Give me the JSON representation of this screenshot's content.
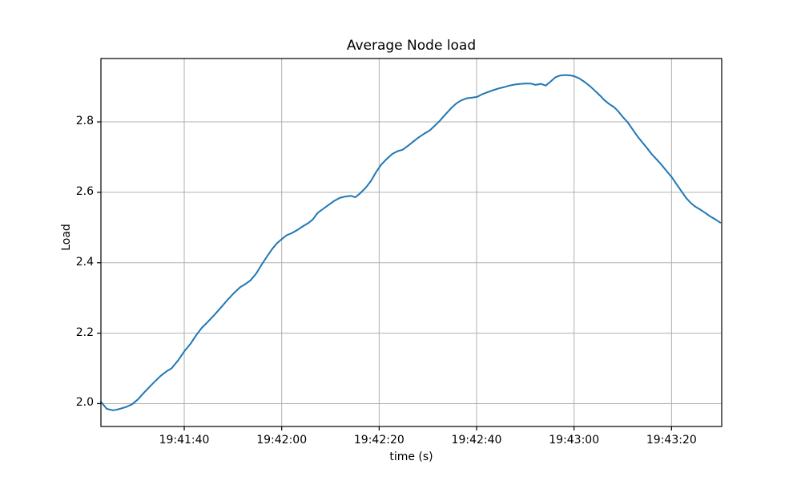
{
  "page": {
    "background": "#ffffff"
  },
  "chart_data": {
    "type": "line",
    "title": "Average Node load",
    "xlabel": "time (s)",
    "ylabel": "Load",
    "grid": true,
    "legend_position": "none",
    "line_color": "#1f77b4",
    "grid_color": "#b0b0b0",
    "axis_color": "#000000",
    "x_axis": {
      "kind": "clock-time",
      "domain_s": [
        82.9,
        210.3
      ],
      "ticks": [
        {
          "s": 100,
          "label": "19:41:40"
        },
        {
          "s": 120,
          "label": "19:42:00"
        },
        {
          "s": 140,
          "label": "19:42:20"
        },
        {
          "s": 160,
          "label": "19:42:40"
        },
        {
          "s": 180,
          "label": "19:43:00"
        },
        {
          "s": 200,
          "label": "19:43:20"
        }
      ]
    },
    "y_axis": {
      "domain": [
        1.935,
        2.98
      ],
      "ticks": [
        {
          "v": 2.0,
          "label": "2.0"
        },
        {
          "v": 2.2,
          "label": "2.2"
        },
        {
          "v": 2.4,
          "label": "2.4"
        },
        {
          "v": 2.6,
          "label": "2.6"
        },
        {
          "v": 2.8,
          "label": "2.8"
        }
      ]
    },
    "series": [
      {
        "name": "average-node-load",
        "color": "#1f77b4",
        "points_s_v": [
          [
            82.9,
            2.005
          ],
          [
            84.1,
            1.985
          ],
          [
            85.4,
            1.981
          ],
          [
            86.5,
            1.984
          ],
          [
            88.0,
            1.99
          ],
          [
            89.3,
            1.998
          ],
          [
            90.5,
            2.012
          ],
          [
            91.8,
            2.032
          ],
          [
            93.4,
            2.055
          ],
          [
            95.1,
            2.078
          ],
          [
            96.4,
            2.092
          ],
          [
            97.4,
            2.1
          ],
          [
            98.7,
            2.122
          ],
          [
            100.0,
            2.148
          ],
          [
            101.3,
            2.17
          ],
          [
            102.5,
            2.195
          ],
          [
            103.6,
            2.215
          ],
          [
            104.9,
            2.233
          ],
          [
            106.2,
            2.252
          ],
          [
            107.6,
            2.274
          ],
          [
            108.9,
            2.295
          ],
          [
            110.2,
            2.314
          ],
          [
            111.5,
            2.331
          ],
          [
            112.6,
            2.34
          ],
          [
            113.6,
            2.35
          ],
          [
            114.8,
            2.37
          ],
          [
            115.9,
            2.395
          ],
          [
            117.1,
            2.42
          ],
          [
            118.1,
            2.44
          ],
          [
            119.0,
            2.455
          ],
          [
            120.0,
            2.467
          ],
          [
            121.0,
            2.478
          ],
          [
            122.2,
            2.485
          ],
          [
            123.2,
            2.493
          ],
          [
            124.3,
            2.503
          ],
          [
            125.5,
            2.513
          ],
          [
            126.4,
            2.523
          ],
          [
            127.4,
            2.542
          ],
          [
            128.4,
            2.552
          ],
          [
            129.6,
            2.564
          ],
          [
            130.7,
            2.575
          ],
          [
            131.9,
            2.584
          ],
          [
            133.0,
            2.588
          ],
          [
            134.2,
            2.59
          ],
          [
            135.1,
            2.586
          ],
          [
            136.1,
            2.597
          ],
          [
            137.3,
            2.614
          ],
          [
            138.3,
            2.632
          ],
          [
            139.4,
            2.658
          ],
          [
            140.4,
            2.678
          ],
          [
            141.5,
            2.694
          ],
          [
            142.7,
            2.709
          ],
          [
            143.8,
            2.717
          ],
          [
            144.8,
            2.721
          ],
          [
            146.0,
            2.733
          ],
          [
            147.1,
            2.745
          ],
          [
            148.1,
            2.756
          ],
          [
            149.3,
            2.767
          ],
          [
            150.4,
            2.776
          ],
          [
            151.4,
            2.789
          ],
          [
            152.5,
            2.804
          ],
          [
            153.5,
            2.82
          ],
          [
            154.7,
            2.838
          ],
          [
            155.8,
            2.852
          ],
          [
            156.8,
            2.861
          ],
          [
            158.0,
            2.867
          ],
          [
            159.1,
            2.869
          ],
          [
            160.1,
            2.871
          ],
          [
            161.2,
            2.879
          ],
          [
            162.4,
            2.885
          ],
          [
            163.4,
            2.89
          ],
          [
            164.5,
            2.895
          ],
          [
            165.7,
            2.899
          ],
          [
            166.7,
            2.903
          ],
          [
            167.8,
            2.906
          ],
          [
            169.0,
            2.908
          ],
          [
            170.0,
            2.909
          ],
          [
            171.1,
            2.909
          ],
          [
            172.1,
            2.905
          ],
          [
            173.2,
            2.908
          ],
          [
            174.2,
            2.903
          ],
          [
            175.2,
            2.915
          ],
          [
            176.2,
            2.927
          ],
          [
            177.2,
            2.932
          ],
          [
            178.3,
            2.933
          ],
          [
            179.3,
            2.932
          ],
          [
            180.0,
            2.93
          ],
          [
            181.0,
            2.924
          ],
          [
            182.1,
            2.914
          ],
          [
            183.3,
            2.901
          ],
          [
            184.4,
            2.887
          ],
          [
            185.4,
            2.874
          ],
          [
            186.2,
            2.862
          ],
          [
            187.2,
            2.851
          ],
          [
            188.2,
            2.842
          ],
          [
            189.0,
            2.831
          ],
          [
            190.0,
            2.814
          ],
          [
            191.0,
            2.799
          ],
          [
            192.0,
            2.779
          ],
          [
            192.9,
            2.761
          ],
          [
            193.9,
            2.744
          ],
          [
            194.9,
            2.727
          ],
          [
            195.9,
            2.709
          ],
          [
            196.9,
            2.694
          ],
          [
            197.9,
            2.679
          ],
          [
            198.9,
            2.662
          ],
          [
            200.0,
            2.644
          ],
          [
            201.0,
            2.624
          ],
          [
            202.0,
            2.604
          ],
          [
            203.0,
            2.584
          ],
          [
            204.0,
            2.569
          ],
          [
            204.9,
            2.559
          ],
          [
            205.9,
            2.551
          ],
          [
            206.9,
            2.542
          ],
          [
            207.9,
            2.532
          ],
          [
            208.9,
            2.524
          ],
          [
            210.0,
            2.514
          ]
        ]
      }
    ]
  }
}
